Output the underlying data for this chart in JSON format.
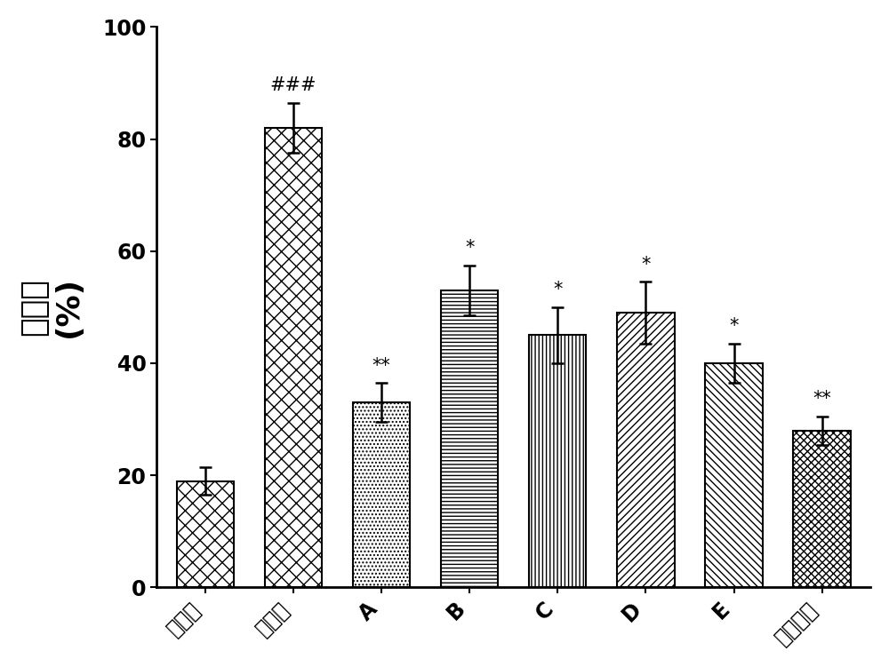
{
  "categories": [
    "对照组",
    "缺氧组",
    "A",
    "B",
    "C",
    "D",
    "E",
    "曲美他喃"
  ],
  "values": [
    19,
    82,
    33,
    53,
    45,
    49,
    40,
    28
  ],
  "errors": [
    2.5,
    4.5,
    3.5,
    4.5,
    5.0,
    5.5,
    3.5,
    2.5
  ],
  "annotations": [
    "",
    "###",
    "**",
    "*",
    "*",
    "*",
    "*",
    "**"
  ],
  "ylabel_chinese": "死亡率",
  "ylabel_pct": "(%)",
  "ylim": [
    0,
    100
  ],
  "yticks": [
    0,
    20,
    40,
    60,
    80,
    100
  ],
  "background_color": "#ffffff",
  "bar_edge_color": "#000000",
  "bar_face_color": "#ffffff",
  "annotation_fontsize": 15,
  "ylabel_fontsize": 26,
  "tick_fontsize": 17,
  "bar_width": 0.65,
  "capsize": 5,
  "elinewidth": 1.8,
  "ecapthick": 1.8
}
